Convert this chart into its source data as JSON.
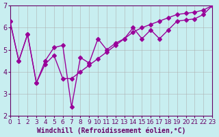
{
  "xlabel": "Windchill (Refroidissement éolien,°C)",
  "ylabel": "",
  "background_color": "#c8eef0",
  "line_color": "#990099",
  "grid_color": "#aaaaaa",
  "xmin": 0,
  "xmax": 23,
  "ymin": 2,
  "ymax": 7,
  "yticks": [
    2,
    3,
    4,
    5,
    6,
    7
  ],
  "xticks": [
    0,
    1,
    2,
    3,
    4,
    5,
    6,
    7,
    8,
    9,
    10,
    11,
    12,
    13,
    14,
    15,
    16,
    17,
    18,
    19,
    20,
    21,
    22,
    23
  ],
  "line1_x": [
    0,
    1,
    2,
    3,
    4,
    5,
    6,
    7,
    8,
    9,
    10,
    11,
    12,
    13,
    14,
    15,
    16,
    17,
    18,
    19,
    20,
    21,
    22,
    23
  ],
  "line1_y": [
    6.3,
    4.5,
    5.7,
    3.5,
    4.5,
    5.1,
    5.2,
    2.4,
    4.65,
    4.4,
    5.5,
    5.0,
    5.3,
    5.5,
    6.0,
    5.5,
    5.9,
    5.5,
    5.9,
    6.3,
    6.35,
    6.4,
    6.6,
    7.0
  ],
  "line2_x": [
    0,
    1,
    2,
    3,
    4,
    5,
    6,
    7,
    8,
    9,
    10,
    11,
    12,
    13,
    14,
    15,
    16,
    17,
    18,
    19,
    20,
    21,
    22,
    23
  ],
  "line2_y": [
    6.3,
    4.5,
    5.7,
    3.5,
    4.35,
    4.75,
    3.7,
    3.7,
    4.0,
    4.3,
    4.6,
    4.9,
    5.2,
    5.5,
    5.8,
    6.0,
    6.15,
    6.3,
    6.45,
    6.6,
    6.65,
    6.7,
    6.8,
    7.0
  ],
  "marker": "D",
  "markersize": 3,
  "linewidth": 1.0,
  "xlabel_fontsize": 7,
  "tick_fontsize": 6.5,
  "ytick_fontsize": 7,
  "ax_color": "#660066"
}
